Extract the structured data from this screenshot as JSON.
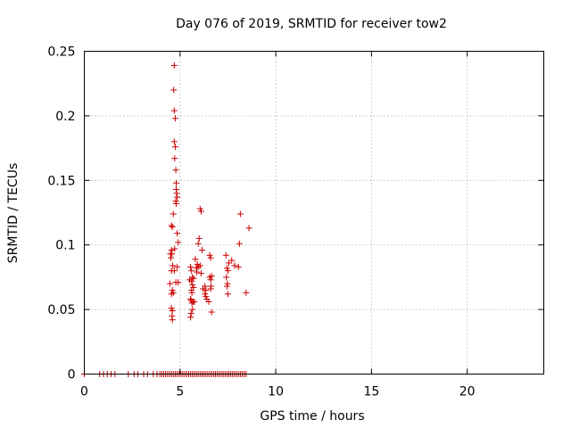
{
  "chart_data": {
    "type": "scatter",
    "title": "Day 076 of 2019, SRMTID for receiver tow2",
    "xlabel": "GPS time / hours",
    "ylabel": "SRMTID / TECUs",
    "xlim": [
      0,
      24
    ],
    "ylim": [
      0,
      0.25
    ],
    "xticks": [
      0,
      5,
      10,
      15,
      20
    ],
    "xtick_labels": [
      "0",
      "5",
      "10",
      "15",
      "20"
    ],
    "yticks": [
      0,
      0.05,
      0.1,
      0.15,
      0.2,
      0.25
    ],
    "ytick_labels": [
      "0",
      "0.05",
      "0.1",
      "0.15",
      "0.2",
      "0.25"
    ],
    "grid": true,
    "marker": "+",
    "color": "#cc0000",
    "series": [
      {
        "name": "SRMTID",
        "x": [
          4.7,
          4.67,
          4.7,
          4.75,
          4.7,
          4.75,
          4.72,
          4.78,
          4.8,
          4.8,
          4.82,
          4.78,
          4.85,
          4.8,
          4.65,
          4.55,
          4.6,
          4.85,
          4.9,
          4.72,
          4.55,
          4.5,
          4.58,
          4.52,
          4.62,
          4.55,
          4.48,
          4.7,
          4.85,
          4.9,
          4.6,
          4.55,
          4.65,
          4.78,
          4.55,
          4.6,
          4.58,
          4.6,
          5.5,
          5.6,
          5.55,
          5.65,
          5.7,
          5.62,
          5.55,
          5.58,
          5.75,
          5.8,
          5.9,
          5.85,
          5.95,
          5.88,
          5.6,
          5.65,
          5.7,
          5.6,
          5.58,
          5.55,
          5.62,
          5.65,
          5.68,
          6.05,
          6.1,
          6.0,
          6.15,
          6.05,
          5.95,
          6.1,
          6.2,
          6.3,
          6.35,
          6.4,
          6.5,
          6.55,
          6.6,
          6.65,
          6.55,
          6.6,
          6.6,
          6.62,
          6.65,
          6.35,
          6.3,
          7.4,
          7.45,
          7.5,
          7.42,
          7.48,
          7.55,
          7.7,
          7.85,
          8.05,
          8.1,
          8.15,
          8.45,
          8.6,
          7.45,
          7.5,
          0.0,
          0.8,
          1.0,
          1.2,
          1.4,
          1.6,
          2.3,
          2.6,
          2.8,
          3.1,
          3.3,
          3.6,
          3.8,
          3.95,
          4.05,
          4.15,
          4.25,
          4.35,
          4.45,
          4.55,
          4.65,
          4.75,
          4.85,
          4.95,
          5.05,
          5.15,
          5.25,
          5.35,
          5.45,
          5.55,
          5.65,
          5.75,
          5.85,
          5.95,
          6.05,
          6.15,
          6.25,
          6.35,
          6.45,
          6.55,
          6.65,
          6.75,
          6.85,
          6.95,
          7.05,
          7.15,
          7.25,
          7.35,
          7.45,
          7.55,
          7.65,
          7.75,
          7.85,
          7.95,
          8.05,
          8.15,
          8.25,
          8.35,
          8.45
        ],
        "y": [
          0.239,
          0.22,
          0.204,
          0.198,
          0.18,
          0.176,
          0.167,
          0.158,
          0.148,
          0.143,
          0.14,
          0.134,
          0.137,
          0.132,
          0.124,
          0.115,
          0.114,
          0.109,
          0.102,
          0.097,
          0.096,
          0.093,
          0.093,
          0.09,
          0.084,
          0.08,
          0.07,
          0.08,
          0.083,
          0.071,
          0.065,
          0.062,
          0.063,
          0.071,
          0.051,
          0.049,
          0.045,
          0.042,
          0.073,
          0.08,
          0.083,
          0.075,
          0.067,
          0.063,
          0.058,
          0.057,
          0.056,
          0.089,
          0.085,
          0.082,
          0.083,
          0.079,
          0.065,
          0.069,
          0.074,
          0.072,
          0.047,
          0.044,
          0.055,
          0.05,
          0.056,
          0.128,
          0.126,
          0.105,
          0.096,
          0.084,
          0.101,
          0.078,
          0.066,
          0.062,
          0.06,
          0.058,
          0.056,
          0.092,
          0.09,
          0.076,
          0.075,
          0.073,
          0.066,
          0.068,
          0.048,
          0.065,
          0.068,
          0.092,
          0.082,
          0.08,
          0.075,
          0.07,
          0.086,
          0.088,
          0.084,
          0.083,
          0.101,
          0.124,
          0.063,
          0.113,
          0.068,
          0.062,
          0,
          0,
          0,
          0,
          0,
          0,
          0,
          0,
          0,
          0,
          0,
          0,
          0,
          0,
          0,
          0,
          0,
          0,
          0,
          0,
          0,
          0,
          0,
          0,
          0,
          0,
          0,
          0,
          0,
          0,
          0,
          0,
          0,
          0,
          0,
          0,
          0,
          0,
          0,
          0,
          0,
          0,
          0,
          0,
          0,
          0,
          0,
          0,
          0,
          0,
          0,
          0,
          0,
          0,
          0,
          0,
          0,
          0,
          0
        ]
      }
    ]
  }
}
